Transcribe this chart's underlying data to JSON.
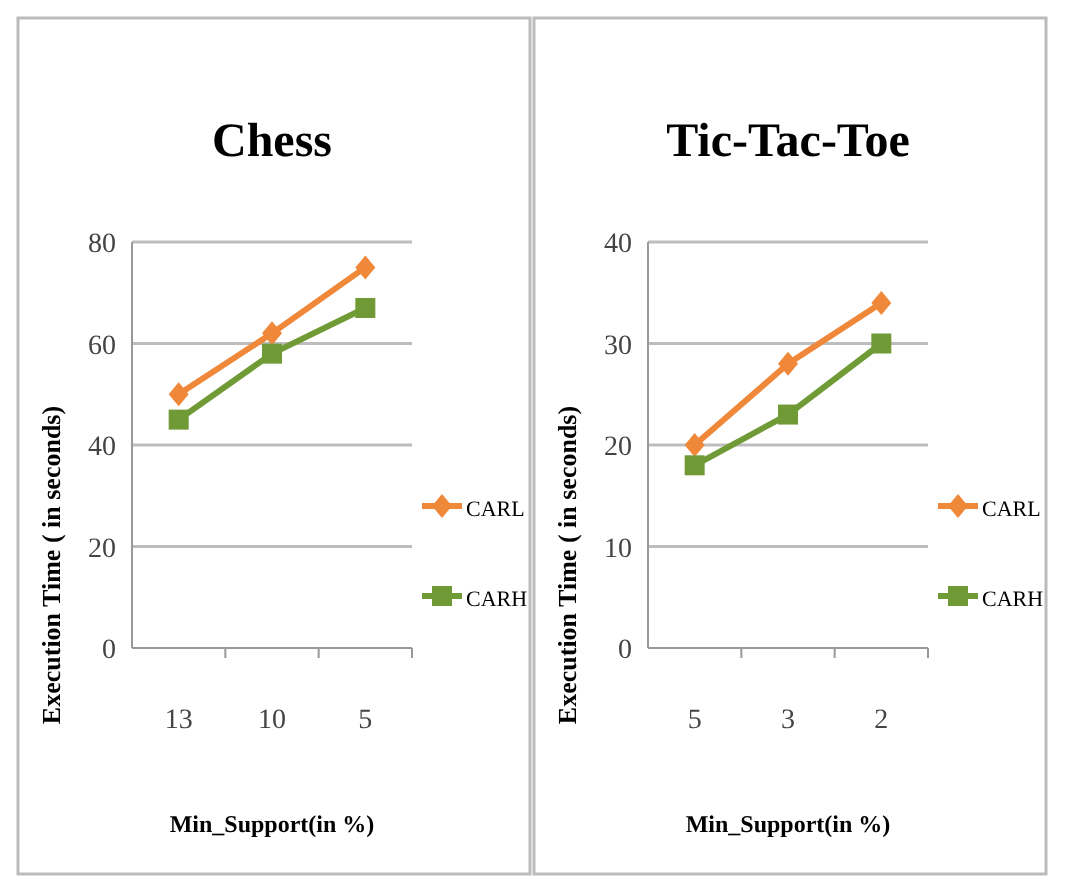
{
  "chart_data": [
    {
      "type": "line",
      "title": "Chess",
      "xlabel": "Min_Support(in %)",
      "ylabel": "Execution Time ( in seconds)",
      "categories": [
        "13",
        "10",
        "5"
      ],
      "ylim": [
        0,
        80
      ],
      "yticks": [
        0,
        20,
        40,
        60,
        80
      ],
      "grid": "y",
      "legend": "right",
      "series": [
        {
          "name": "CARL",
          "color": "#f0883a",
          "values": [
            50,
            62,
            75
          ],
          "marker": "diamond"
        },
        {
          "name": "CARH",
          "color": "#6f9a35",
          "values": [
            45,
            58,
            67
          ],
          "marker": "square"
        }
      ]
    },
    {
      "type": "line",
      "title": "Tic-Tac-Toe",
      "xlabel": "Min_Support(in %)",
      "ylabel": "Execution Time ( in seconds)",
      "categories": [
        "5",
        "3",
        "2"
      ],
      "ylim": [
        0,
        40
      ],
      "yticks": [
        0,
        10,
        20,
        30,
        40
      ],
      "grid": "y",
      "legend": "right",
      "series": [
        {
          "name": "CARL",
          "color": "#f0883a",
          "values": [
            20,
            28,
            34
          ],
          "marker": "diamond"
        },
        {
          "name": "CARH",
          "color": "#6f9a35",
          "values": [
            18,
            23,
            30
          ],
          "marker": "square"
        }
      ]
    }
  ]
}
